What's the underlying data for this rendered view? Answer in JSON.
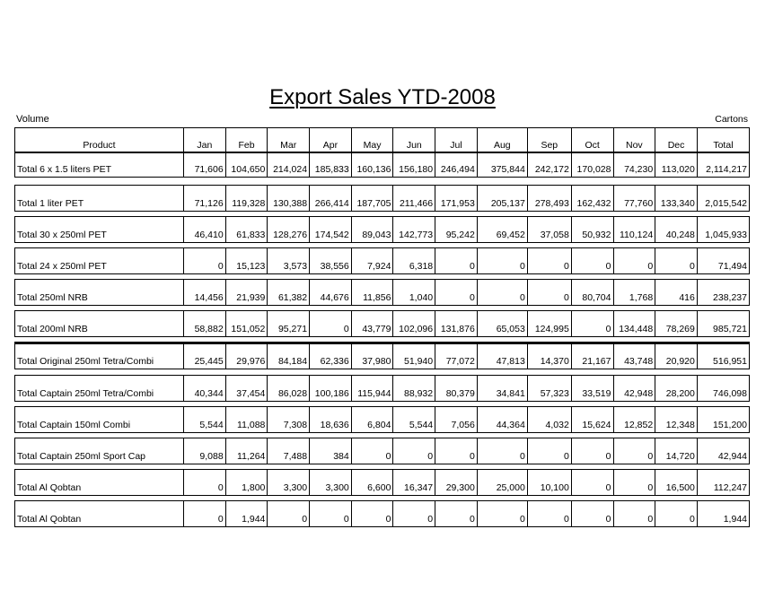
{
  "title": "Export Sales YTD-2008",
  "label_left": "Volume",
  "label_right": "Cartons",
  "columns": [
    "Product",
    "Jan",
    "Feb",
    "Mar",
    "Apr",
    "May",
    "Jun",
    "Jul",
    "Aug",
    "Sep",
    "Oct",
    "Nov",
    "Dec",
    "Total"
  ],
  "rows": [
    {
      "product": "Total 6 x 1.5 liters PET",
      "values": [
        "71,606",
        "104,650",
        "214,024",
        "185,833",
        "160,136",
        "156,180",
        "246,494",
        "375,844",
        "242,172",
        "170,028",
        "74,230",
        "113,020",
        "2,114,217"
      ]
    },
    {
      "product": "Total 1 liter PET",
      "values": [
        "71,126",
        "119,328",
        "130,388",
        "266,414",
        "187,705",
        "211,466",
        "171,953",
        "205,137",
        "278,493",
        "162,432",
        "77,760",
        "133,340",
        "2,015,542"
      ]
    },
    {
      "product": "Total 30 x 250ml PET",
      "values": [
        "46,410",
        "61,833",
        "128,276",
        "174,542",
        "89,043",
        "142,773",
        "95,242",
        "69,452",
        "37,058",
        "50,932",
        "110,124",
        "40,248",
        "1,045,933"
      ]
    },
    {
      "product": "Total 24 x 250ml PET",
      "values": [
        "0",
        "15,123",
        "3,573",
        "38,556",
        "7,924",
        "6,318",
        "0",
        "0",
        "0",
        "0",
        "0",
        "0",
        "71,494"
      ]
    },
    {
      "product": "Total 250ml NRB",
      "values": [
        "14,456",
        "21,939",
        "61,382",
        "44,676",
        "11,856",
        "1,040",
        "0",
        "0",
        "0",
        "80,704",
        "1,768",
        "416",
        "238,237"
      ]
    },
    {
      "product": "Total 200ml NRB",
      "values": [
        "58,882",
        "151,052",
        "95,271",
        "0",
        "43,779",
        "102,096",
        "131,876",
        "65,053",
        "124,995",
        "0",
        "134,448",
        "78,269",
        "985,721"
      ]
    },
    {
      "product": "Total Original 250ml Tetra/Combi",
      "values": [
        "25,445",
        "29,976",
        "84,184",
        "62,336",
        "37,980",
        "51,940",
        "77,072",
        "47,813",
        "14,370",
        "21,167",
        "43,748",
        "20,920",
        "516,951"
      ]
    },
    {
      "product": "Total Captain 250ml Tetra/Combi",
      "values": [
        "40,344",
        "37,454",
        "86,028",
        "100,186",
        "115,944",
        "88,932",
        "80,379",
        "34,841",
        "57,323",
        "33,519",
        "42,948",
        "28,200",
        "746,098"
      ]
    },
    {
      "product": "Total Captain 150ml Combi",
      "values": [
        "5,544",
        "11,088",
        "7,308",
        "18,636",
        "6,804",
        "5,544",
        "7,056",
        "44,364",
        "4,032",
        "15,624",
        "12,852",
        "12,348",
        "151,200"
      ]
    },
    {
      "product": "Total Captain 250ml Sport Cap",
      "values": [
        "9,088",
        "11,264",
        "7,488",
        "384",
        "0",
        "0",
        "0",
        "0",
        "0",
        "0",
        "0",
        "14,720",
        "42,944"
      ]
    },
    {
      "product": "Total Al Qobtan",
      "values": [
        "0",
        "1,800",
        "3,300",
        "3,300",
        "6,600",
        "16,347",
        "29,300",
        "25,000",
        "10,100",
        "0",
        "0",
        "16,500",
        "112,247"
      ]
    },
    {
      "product": "Total Al Qobtan",
      "values": [
        "0",
        "1,944",
        "0",
        "0",
        "0",
        "0",
        "0",
        "0",
        "0",
        "0",
        "0",
        "0",
        "1,944"
      ]
    }
  ]
}
